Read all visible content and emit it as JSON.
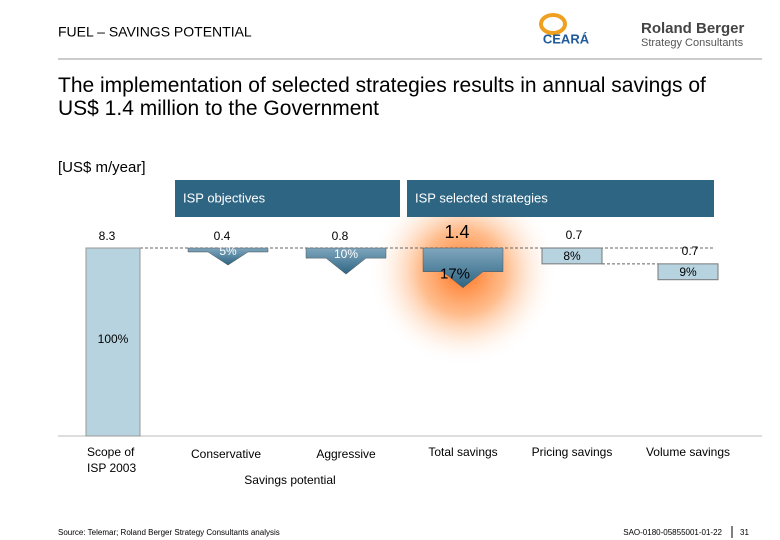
{
  "header": {
    "section": "FUEL – SAVINGS POTENTIAL",
    "logo_left": "CEARÁ",
    "logo_right": "Roland Berger",
    "logo_right_sub": "Strategy Consultants"
  },
  "title": "The implementation of selected strategies results in annual savings of US$ 1.4 million to the Government",
  "chart_data": {
    "type": "waterfall",
    "unit": "[US$ m/year]",
    "groups": [
      "ISP objectives",
      "ISP selected strategies"
    ],
    "group_axis_label": "Savings potential",
    "categories": [
      "Scope of ISP 2003",
      "Conservative",
      "Aggressive",
      "Total savings",
      "Pricing savings",
      "Volume savings"
    ],
    "values": [
      8.3,
      0.4,
      0.8,
      1.4,
      0.7,
      0.7
    ],
    "share_labels": [
      "100%",
      "5%",
      "10%",
      "17%",
      "8%",
      "9%"
    ],
    "color": "#b7d3e0"
  },
  "footer": {
    "source": "Source: Telemar; Roland Berger Strategy Consultants analysis",
    "code": "SAO-0180-05855001-01-22",
    "page": "31"
  }
}
